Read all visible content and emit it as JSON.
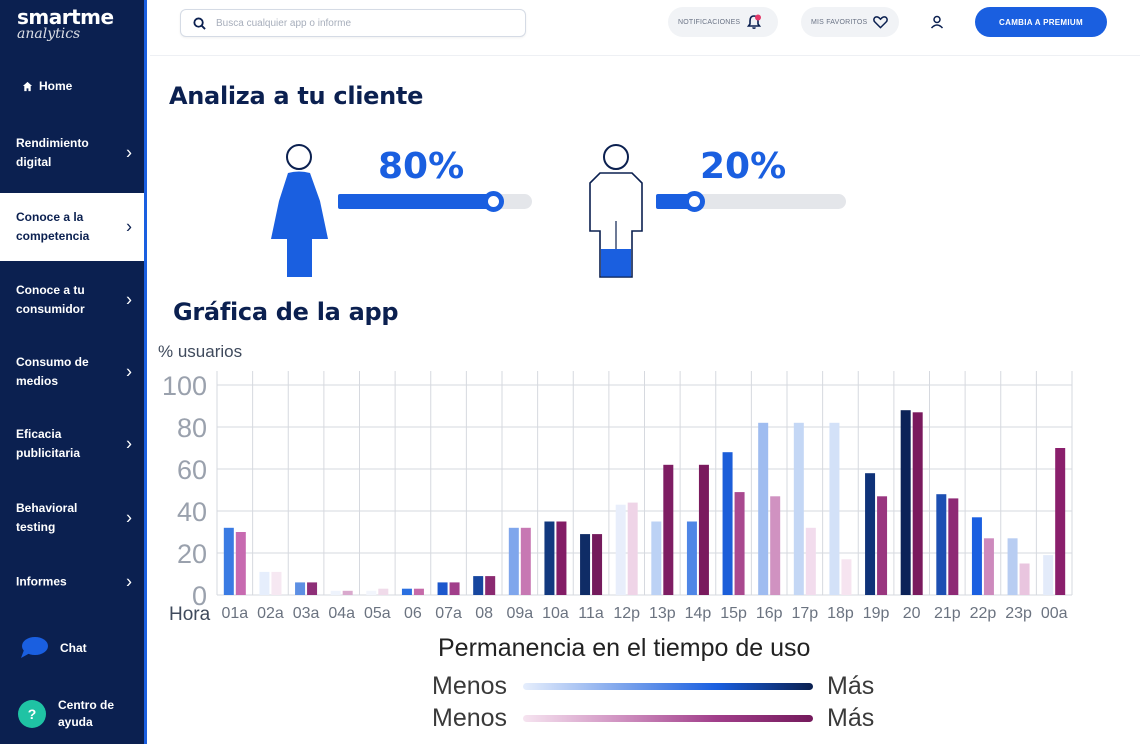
{
  "sidebar": {
    "logo_main": "smartme",
    "logo_sub": "analytics",
    "home": "Home",
    "items": [
      {
        "label": "Rendimiento digital"
      },
      {
        "label": "Conoce a la competencia"
      },
      {
        "label": "Conoce a tu consumidor"
      },
      {
        "label": "Consumo de medios"
      },
      {
        "label": "Eficacia publicitaria"
      },
      {
        "label": "Behavioral testing"
      },
      {
        "label": "Informes"
      }
    ],
    "active_index": 1,
    "chat": "Chat",
    "help": "Centro de ayuda"
  },
  "header": {
    "search_placeholder": "Busca cualquier app o informe",
    "notifications": "NOTIFICACIONES",
    "favorites": "MIS FAVORITOS",
    "premium": "CAMBIA A PREMIUM"
  },
  "section_title": "Analiza a tu cliente",
  "gender": {
    "female_pct": "80%",
    "female_value": 80,
    "male_pct": "20%",
    "male_value": 20
  },
  "chart_title": "Gráfica de la app",
  "chart_data": {
    "type": "bar",
    "ylabel": "% usuarios",
    "xlabel": "Hora",
    "ylim": [
      0,
      100
    ],
    "yticks": [
      0,
      20,
      40,
      60,
      80,
      100
    ],
    "grid": true,
    "categories": [
      "01a",
      "02a",
      "03a",
      "04a",
      "05a",
      "06",
      "07a",
      "08",
      "09a",
      "10a",
      "11a",
      "12p",
      "13p",
      "14p",
      "15p",
      "16p",
      "17p",
      "18p",
      "19p",
      "20",
      "21p",
      "22p",
      "23p",
      "00a"
    ],
    "series": [
      {
        "values": [
          32,
          11,
          6,
          2,
          2,
          3,
          6,
          9,
          32,
          35,
          29,
          43,
          35,
          35,
          68,
          82,
          82,
          82,
          58,
          88,
          48,
          37,
          27,
          19
        ],
        "colors": [
          "#3a7be3",
          "#e6eefc",
          "#5d8fe3",
          "#eef3fc",
          "#f2f5fc",
          "#2a6fe0",
          "#1c57cc",
          "#16469f",
          "#7fa6ec",
          "#12397f",
          "#0f2c66",
          "#e8eefb",
          "#bcd2f5",
          "#4f86e6",
          "#1c5ed9",
          "#9fbcf0",
          "#c4d7f5",
          "#d3e1f8",
          "#0f3278",
          "#0b2258",
          "#1d4fb2",
          "#1a5fe0",
          "#b8cdf2",
          "#e3ebfa"
        ]
      },
      {
        "values": [
          30,
          11,
          6,
          2,
          3,
          3,
          6,
          9,
          32,
          35,
          29,
          44,
          62,
          62,
          49,
          47,
          32,
          17,
          47,
          87,
          46,
          27,
          15,
          70
        ],
        "colors": [
          "#c76ab0",
          "#f6e8f2",
          "#8e2f78",
          "#d9a9cd",
          "#f0dbea",
          "#c56aa9",
          "#a13e8a",
          "#8a2970",
          "#c778b3",
          "#831d66",
          "#741a5c",
          "#efd4e7",
          "#7e1d63",
          "#7a1a5e",
          "#a9498f",
          "#d092c1",
          "#f2dced",
          "#f6e4f0",
          "#99367f",
          "#7a1a5e",
          "#8e2975",
          "#cd8abd",
          "#e9c5df",
          "#8a1f6c"
        ]
      }
    ]
  },
  "legend": {
    "title": "Permanencia en el tiempo de uso",
    "less": "Menos",
    "more": "Más"
  }
}
